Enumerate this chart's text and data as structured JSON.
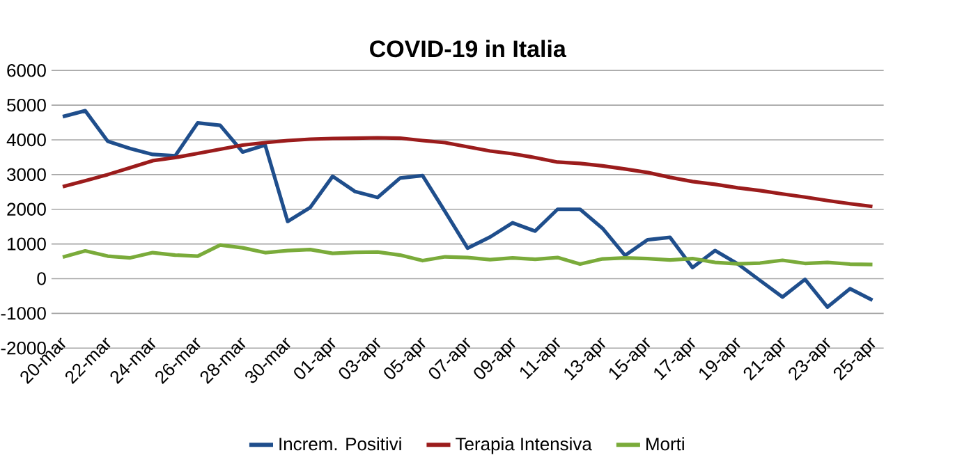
{
  "chart_data": {
    "type": "line",
    "title": "COVID-19 in Italia",
    "categories": [
      "20-mar",
      null,
      "22-mar",
      null,
      "24-mar",
      null,
      "26-mar",
      null,
      "28-mar",
      null,
      "30-mar",
      null,
      "01-apr",
      null,
      "03-apr",
      null,
      "05-apr",
      null,
      "07-apr",
      null,
      "09-apr",
      null,
      "11-apr",
      null,
      "13-apr",
      null,
      "15-apr",
      null,
      "17-apr",
      null,
      "19-apr",
      null,
      "21-apr",
      null,
      "23-apr",
      null,
      "25-apr"
    ],
    "series": [
      {
        "name": "Increm. Positivi",
        "color": "#1f4e8c",
        "values": [
          4670,
          4840,
          3960,
          3750,
          3580,
          3540,
          4490,
          4420,
          3650,
          3850,
          1650,
          2050,
          2950,
          2510,
          2340,
          2900,
          2970,
          1930,
          880,
          1200,
          1610,
          1370,
          2000,
          2000,
          1450,
          670,
          1120,
          1190,
          320,
          810,
          430,
          -50,
          -530,
          -20,
          -820,
          -290,
          -620
        ]
      },
      {
        "name": "Terapia Intensiva",
        "color": "#9b1c1c",
        "values": [
          2650,
          2820,
          3000,
          3200,
          3400,
          3490,
          3610,
          3730,
          3850,
          3920,
          3980,
          4020,
          4040,
          4050,
          4060,
          4050,
          3980,
          3920,
          3800,
          3680,
          3600,
          3490,
          3360,
          3320,
          3250,
          3160,
          3060,
          2920,
          2800,
          2720,
          2620,
          2540,
          2440,
          2350,
          2250,
          2160,
          2080
        ]
      },
      {
        "name": "Morti",
        "color": "#7aab3a",
        "values": [
          620,
          800,
          650,
          600,
          750,
          680,
          650,
          970,
          890,
          750,
          810,
          840,
          730,
          760,
          770,
          680,
          520,
          630,
          610,
          550,
          600,
          560,
          610,
          420,
          570,
          600,
          580,
          540,
          580,
          470,
          430,
          450,
          530,
          440,
          470,
          420,
          410
        ]
      }
    ],
    "ylim": [
      -2000,
      6000
    ],
    "yticks": [
      -2000,
      -1000,
      0,
      1000,
      2000,
      3000,
      4000,
      5000,
      6000
    ],
    "grid": "y",
    "legend": "bottom",
    "marker": "none",
    "line_style": "solid"
  }
}
